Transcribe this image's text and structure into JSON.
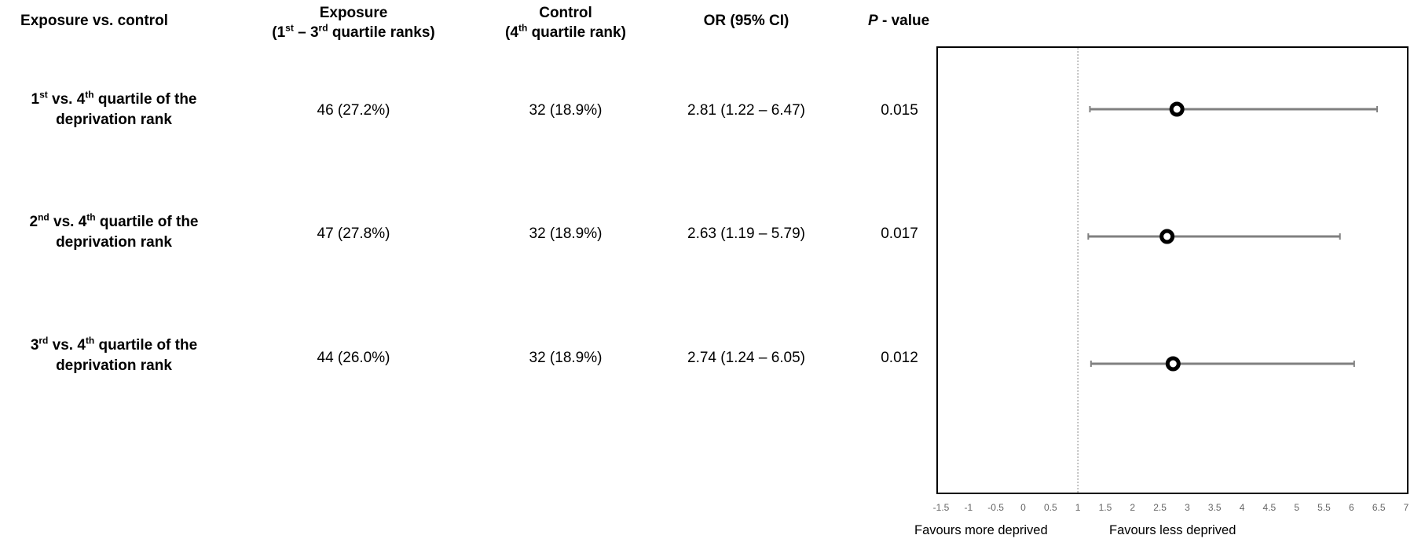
{
  "headers": {
    "comparison": "Exposure vs. control",
    "exposure_line1": "Exposure",
    "exposure_line2": "quartile ranks)",
    "control_line1": "Control",
    "control_line2": "quartile rank)",
    "or": "OR (95% CI)",
    "p_label": "P",
    "p_suffix": " - value"
  },
  "rows": [
    {
      "ord": "1",
      "ord_sup": "st",
      "label_rest": " vs. 4",
      "label_sup": "th",
      "label_tail": " quartile of the",
      "label_line2": "deprivation rank",
      "exposure": "46 (27.2%)",
      "control": "32 (18.9%)",
      "or_text": "2.81 (1.22 – 6.47)",
      "p": "0.015"
    },
    {
      "ord": "2",
      "ord_sup": "nd",
      "label_rest": " vs. 4",
      "label_sup": "th",
      "label_tail": " quartile of the",
      "label_line2": "deprivation rank",
      "exposure": "47 (27.8%)",
      "control": "32 (18.9%)",
      "or_text": "2.63 (1.19 – 5.79)",
      "p": "0.017"
    },
    {
      "ord": "3",
      "ord_sup": "rd",
      "label_rest": " vs. 4",
      "label_sup": "th",
      "label_tail": " quartile of the",
      "label_line2": "deprivation rank",
      "exposure": "44 (26.0%)",
      "control": "32 (18.9%)",
      "or_text": "2.74 (1.24 – 6.05)",
      "p": "0.012"
    }
  ],
  "footer": {
    "left": "Favours more deprived",
    "right": "Favours less deprived"
  },
  "chart_data": {
    "type": "scatter",
    "subtype": "forest-plot",
    "x_ticks": [
      "-1.5",
      "-1",
      "-0.5",
      "0",
      "0.5",
      "1",
      "1.5",
      "2",
      "2.5",
      "3",
      "3.5",
      "4",
      "4.5",
      "5",
      "5.5",
      "6",
      "6.5",
      "7"
    ],
    "xlim": [
      -1.5,
      7
    ],
    "reference_line": 1,
    "series": [
      {
        "values": [
          {
            "or": 2.81,
            "lower": 1.22,
            "upper": 6.47
          },
          {
            "or": 2.63,
            "lower": 1.19,
            "upper": 5.79
          },
          {
            "or": 2.74,
            "lower": 1.24,
            "upper": 6.05
          }
        ]
      }
    ],
    "colors": {
      "whisker": "#808080",
      "point": "#000000",
      "reference": "#999999",
      "frame": "#000000"
    }
  }
}
